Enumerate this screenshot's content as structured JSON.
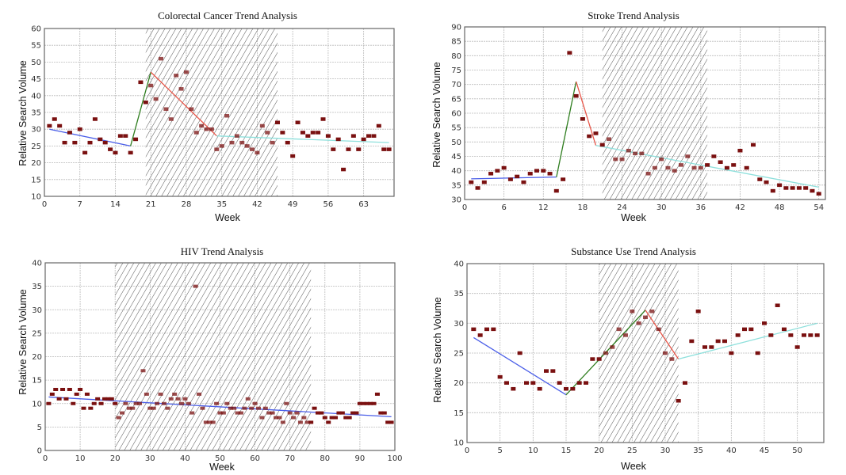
{
  "colors": {
    "point": "#7a1010",
    "trend_pre": "#4a5ee8",
    "trend_rise": "#2e7d1e",
    "trend_fall": "#e8574a",
    "trend_post": "#8ee0dc",
    "hatch": "#555555",
    "grid": "#bbbbbb",
    "frame": "#666666"
  },
  "chart_data": [
    {
      "id": "colorectal",
      "type": "scatter",
      "title": "Colorectal Cancer Trend Analysis",
      "xlabel": "Week",
      "ylabel": "Relative Search Volume",
      "xlim": [
        0,
        69
      ],
      "ylim": [
        10,
        60
      ],
      "xticks": [
        0,
        7,
        14,
        21,
        28,
        35,
        42,
        49,
        56,
        63
      ],
      "yticks": [
        10,
        15,
        20,
        25,
        30,
        35,
        40,
        45,
        50,
        55,
        60
      ],
      "grid": true,
      "shaded_region": [
        20,
        46
      ],
      "x": [
        1,
        2,
        3,
        4,
        5,
        6,
        7,
        8,
        9,
        10,
        11,
        12,
        13,
        14,
        15,
        16,
        17,
        18,
        19,
        20,
        21,
        22,
        23,
        24,
        25,
        26,
        27,
        28,
        29,
        30,
        31,
        32,
        33,
        34,
        35,
        36,
        37,
        38,
        39,
        40,
        41,
        42,
        43,
        44,
        45,
        46,
        47,
        48,
        49,
        50,
        51,
        52,
        53,
        54,
        55,
        56,
        57,
        58,
        59,
        60,
        61,
        62,
        63,
        64,
        65,
        66,
        67,
        68
      ],
      "values": [
        31,
        33,
        31,
        26,
        29,
        26,
        30,
        23,
        26,
        33,
        27,
        26,
        24,
        23,
        28,
        28,
        23,
        27,
        44,
        38,
        43,
        39,
        51,
        36,
        33,
        46,
        42,
        47,
        36,
        29,
        31,
        30,
        30,
        24,
        25,
        34,
        26,
        28,
        26,
        25,
        24,
        23,
        31,
        29,
        26,
        32,
        29,
        26,
        22,
        32,
        29,
        28,
        29,
        29,
        33,
        28,
        24,
        27,
        18,
        24,
        28,
        24,
        27,
        28,
        28,
        31,
        24,
        24
      ],
      "trend_segments": [
        {
          "name": "pre",
          "color_key": "trend_pre",
          "x": [
            1,
            17
          ],
          "y": [
            30,
            25
          ]
        },
        {
          "name": "rise",
          "color_key": "trend_rise",
          "x": [
            17,
            21
          ],
          "y": [
            25,
            47
          ]
        },
        {
          "name": "fall",
          "color_key": "trend_fall",
          "x": [
            21,
            34
          ],
          "y": [
            47,
            28
          ]
        },
        {
          "name": "post",
          "color_key": "trend_post",
          "x": [
            34,
            68
          ],
          "y": [
            28,
            26
          ]
        }
      ]
    },
    {
      "id": "stroke",
      "type": "scatter",
      "title": "Stroke Trend Analysis",
      "xlabel": "Week",
      "ylabel": "Relative Search Volume",
      "xlim": [
        0,
        55
      ],
      "ylim": [
        30,
        90
      ],
      "xticks": [
        0,
        6,
        12,
        18,
        24,
        30,
        36,
        42,
        48,
        54
      ],
      "yticks": [
        30,
        35,
        40,
        45,
        50,
        55,
        60,
        65,
        70,
        75,
        80,
        85,
        90
      ],
      "grid": true,
      "shaded_region": [
        21,
        37
      ],
      "x": [
        1,
        2,
        3,
        4,
        5,
        6,
        7,
        8,
        9,
        10,
        11,
        12,
        13,
        14,
        15,
        16,
        17,
        18,
        19,
        20,
        21,
        22,
        23,
        24,
        25,
        26,
        27,
        28,
        29,
        30,
        31,
        32,
        33,
        34,
        35,
        36,
        37,
        38,
        39,
        40,
        41,
        42,
        43,
        44,
        45,
        46,
        47,
        48,
        49,
        50,
        51,
        52,
        53,
        54
      ],
      "values": [
        36,
        34,
        36,
        39,
        40,
        41,
        37,
        38,
        36,
        39,
        40,
        40,
        39,
        33,
        37,
        81,
        66,
        58,
        52,
        53,
        49,
        51,
        44,
        44,
        47,
        46,
        46,
        39,
        41,
        44,
        41,
        40,
        42,
        45,
        41,
        41,
        42,
        45,
        43,
        41,
        42,
        47,
        41,
        49,
        37,
        36,
        33,
        35,
        34,
        34,
        34,
        34,
        33,
        32
      ],
      "trend_segments": [
        {
          "name": "pre",
          "color_key": "trend_pre",
          "x": [
            1,
            14
          ],
          "y": [
            37.2,
            37.8
          ]
        },
        {
          "name": "rise",
          "color_key": "trend_rise",
          "x": [
            14,
            17
          ],
          "y": [
            37.8,
            71
          ]
        },
        {
          "name": "fall",
          "color_key": "trend_fall",
          "x": [
            17,
            20
          ],
          "y": [
            71,
            48.8
          ]
        },
        {
          "name": "post",
          "color_key": "trend_post",
          "x": [
            20,
            54
          ],
          "y": [
            48.8,
            34.3
          ]
        }
      ]
    },
    {
      "id": "hiv",
      "type": "scatter",
      "title": "HIV Trend Analysis",
      "xlabel": "Week",
      "ylabel": "Relative Search Volume",
      "xlim": [
        0,
        100
      ],
      "ylim": [
        0,
        40
      ],
      "xticks": [
        0,
        10,
        20,
        30,
        40,
        50,
        60,
        70,
        80,
        90,
        100
      ],
      "yticks": [
        0,
        5,
        10,
        15,
        20,
        25,
        30,
        35,
        40
      ],
      "grid": true,
      "shaded_region": [
        20,
        76
      ],
      "x": [
        1,
        2,
        3,
        4,
        5,
        6,
        7,
        8,
        9,
        10,
        11,
        12,
        13,
        14,
        15,
        16,
        17,
        18,
        19,
        20,
        21,
        22,
        23,
        24,
        25,
        26,
        27,
        28,
        29,
        30,
        31,
        32,
        33,
        34,
        35,
        36,
        37,
        38,
        39,
        40,
        41,
        42,
        43,
        44,
        45,
        46,
        47,
        48,
        49,
        50,
        51,
        52,
        53,
        54,
        55,
        56,
        57,
        58,
        59,
        60,
        61,
        62,
        63,
        64,
        65,
        66,
        67,
        68,
        69,
        70,
        71,
        72,
        73,
        74,
        75,
        76,
        77,
        78,
        79,
        80,
        81,
        82,
        83,
        84,
        85,
        86,
        87,
        88,
        89,
        90,
        91,
        92,
        93,
        94,
        95,
        96,
        97,
        98,
        99
      ],
      "values": [
        10,
        12,
        13,
        11,
        13,
        11,
        13,
        10,
        12,
        13,
        9,
        12,
        9,
        10,
        11,
        10,
        11,
        11,
        11,
        10,
        7,
        8,
        10,
        9,
        9,
        10,
        10,
        17,
        12,
        9,
        9,
        10,
        12,
        10,
        9,
        11,
        12,
        11,
        10,
        11,
        10,
        8,
        35,
        12,
        9,
        6,
        6,
        6,
        10,
        8,
        8,
        10,
        9,
        9,
        8,
        8,
        9,
        11,
        9,
        10,
        9,
        7,
        9,
        8,
        8,
        7,
        7,
        6,
        10,
        8,
        7,
        8,
        6,
        7,
        6,
        6,
        9,
        8,
        8,
        7,
        6,
        7,
        7,
        8,
        8,
        7,
        7,
        8,
        8,
        10,
        10,
        10,
        10,
        10,
        12,
        8,
        8,
        6,
        6
      ],
      "trend_segments": [
        {
          "name": "overall",
          "color_key": "trend_pre",
          "x": [
            1,
            99
          ],
          "y": [
            11.4,
            7.2
          ]
        }
      ]
    },
    {
      "id": "substance",
      "type": "scatter",
      "title": "Substance Use Trend Analysis",
      "xlabel": "Week",
      "ylabel": "Relative Search Volume",
      "xlim": [
        0,
        54
      ],
      "ylim": [
        10,
        40
      ],
      "xticks": [
        0,
        5,
        10,
        15,
        20,
        25,
        30,
        35,
        40,
        45,
        50
      ],
      "yticks": [
        10,
        15,
        20,
        25,
        30,
        35,
        40
      ],
      "grid": true,
      "shaded_region": [
        20,
        32
      ],
      "x": [
        1,
        2,
        3,
        4,
        5,
        6,
        7,
        8,
        9,
        10,
        11,
        12,
        13,
        14,
        15,
        16,
        17,
        18,
        19,
        20,
        21,
        22,
        23,
        24,
        25,
        26,
        27,
        28,
        29,
        30,
        31,
        32,
        33,
        34,
        35,
        36,
        37,
        38,
        39,
        40,
        41,
        42,
        43,
        44,
        45,
        46,
        47,
        48,
        49,
        50,
        51,
        52,
        53
      ],
      "values": [
        29,
        28,
        29,
        29,
        21,
        20,
        19,
        25,
        20,
        20,
        19,
        22,
        22,
        20,
        19,
        19,
        20,
        20,
        24,
        24,
        25,
        26,
        29,
        28,
        32,
        30,
        31,
        32,
        29,
        25,
        24,
        17,
        20,
        27,
        32,
        26,
        26,
        27,
        27,
        25,
        28,
        29,
        29,
        25,
        30,
        28,
        33,
        29,
        28,
        26,
        28,
        28,
        28
      ],
      "trend_segments": [
        {
          "name": "pre",
          "color_key": "trend_pre",
          "x": [
            1,
            15
          ],
          "y": [
            27.6,
            18
          ]
        },
        {
          "name": "rise",
          "color_key": "trend_rise",
          "x": [
            15,
            27
          ],
          "y": [
            18,
            32.2
          ]
        },
        {
          "name": "fall",
          "color_key": "trend_fall",
          "x": [
            27,
            32
          ],
          "y": [
            32.2,
            24
          ]
        },
        {
          "name": "post",
          "color_key": "trend_post",
          "x": [
            32,
            53
          ],
          "y": [
            24,
            30
          ]
        }
      ]
    }
  ]
}
